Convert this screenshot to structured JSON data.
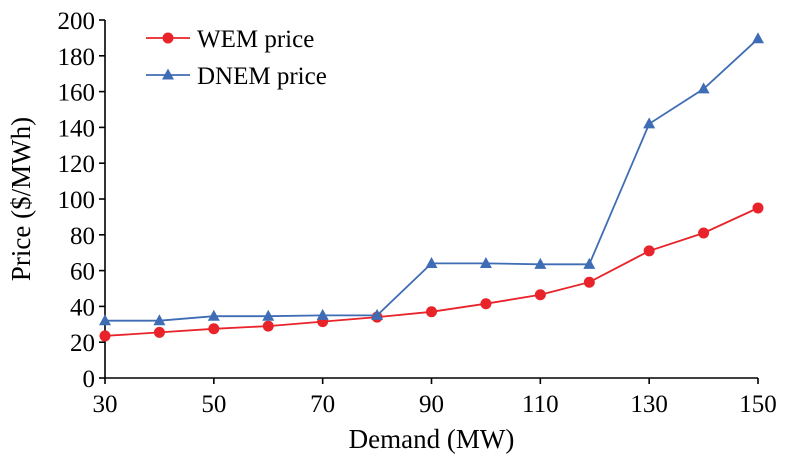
{
  "chart_data": {
    "type": "line",
    "title": "",
    "xlabel": "Demand (MW)",
    "ylabel": "Price ($/MWh)",
    "xlim": [
      30,
      150
    ],
    "ylim": [
      0,
      200
    ],
    "xticks": [
      30,
      50,
      70,
      90,
      110,
      130,
      150
    ],
    "yticks": [
      0,
      20,
      40,
      60,
      80,
      100,
      120,
      140,
      160,
      180,
      200
    ],
    "grid": false,
    "legend_position": "top-left",
    "series": [
      {
        "name": "WEM price",
        "color": "#e8232a",
        "marker": "circle",
        "x": [
          30,
          40,
          50,
          60,
          70,
          80,
          90,
          100,
          110,
          119,
          130,
          140,
          150
        ],
        "y": [
          23.5,
          25.5,
          27.5,
          29,
          31.5,
          34,
          37,
          41.5,
          46.5,
          53.5,
          71,
          81,
          95
        ]
      },
      {
        "name": "DNEM price",
        "color": "#3f6db5",
        "marker": "triangle",
        "x": [
          30,
          40,
          50,
          60,
          70,
          80,
          90,
          100,
          110,
          119,
          130,
          140,
          150
        ],
        "y": [
          32,
          32,
          34.5,
          34.5,
          35,
          35,
          64,
          64,
          63.5,
          63.5,
          142,
          161.5,
          189.5
        ]
      }
    ]
  }
}
